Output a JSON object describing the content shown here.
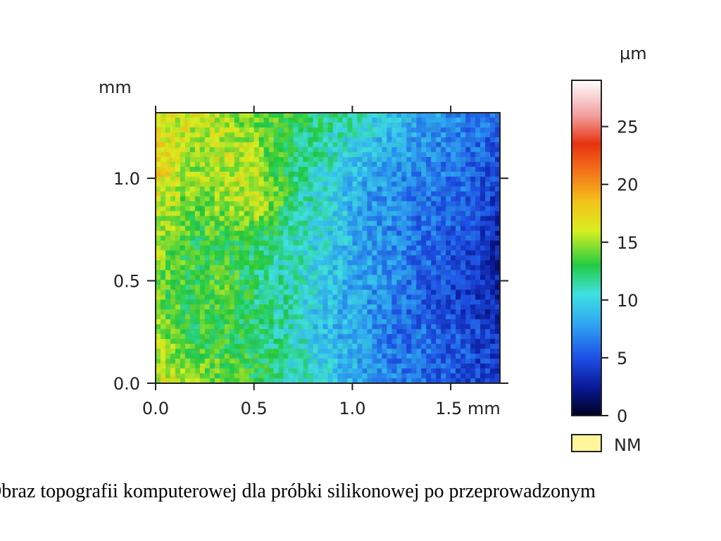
{
  "chart_data": {
    "type": "heatmap",
    "title": "",
    "x_axis": {
      "unit": "mm",
      "range": [
        0.0,
        1.75
      ],
      "ticks": [
        0.0,
        0.5,
        1.0,
        1.5
      ],
      "tick_labels": [
        "0.0",
        "0.5",
        "1.0",
        "1.5 mm"
      ]
    },
    "y_axis": {
      "unit": "mm",
      "range": [
        0.0,
        1.32
      ],
      "ticks": [
        0.0,
        0.5,
        1.0
      ],
      "tick_labels": [
        "0.0",
        "0.5",
        "1.0"
      ],
      "unit_label": "mm"
    },
    "colorbar": {
      "unit_label": "µm",
      "range": [
        0,
        29
      ],
      "ticks": [
        0,
        5,
        10,
        15,
        20,
        25
      ],
      "tick_labels": [
        "0",
        "5",
        "10",
        "15",
        "20",
        "25"
      ],
      "stops": [
        {
          "value": 0,
          "color": "#000022"
        },
        {
          "value": 2.5,
          "color": "#0a1a9a"
        },
        {
          "value": 5,
          "color": "#1e4fe6"
        },
        {
          "value": 8,
          "color": "#2fa8f2"
        },
        {
          "value": 10.5,
          "color": "#3fe0e0"
        },
        {
          "value": 13,
          "color": "#22cc44"
        },
        {
          "value": 16,
          "color": "#d8ee20"
        },
        {
          "value": 18.5,
          "color": "#f4c21a"
        },
        {
          "value": 21,
          "color": "#f4761a"
        },
        {
          "value": 23.5,
          "color": "#e83210"
        },
        {
          "value": 26,
          "color": "#f0a0a0"
        },
        {
          "value": 29,
          "color": "#ffffff"
        }
      ],
      "nm_label": "NM",
      "nm_color": "#fff59a"
    },
    "height_field_um": {
      "description_rows": "rows from y=1.32 mm (top) to y=0.0 mm (bottom), columns from x=0.0 to x=1.75 mm",
      "grid": [
        [
          16,
          16,
          15,
          14,
          13,
          12,
          11,
          9,
          8,
          7,
          6
        ],
        [
          18,
          15,
          16,
          15,
          12,
          11,
          9,
          8,
          7,
          6,
          5
        ],
        [
          16,
          14,
          15,
          16,
          12,
          10,
          8,
          7,
          6,
          6,
          4
        ],
        [
          15,
          13,
          13,
          12,
          11,
          10,
          8,
          7,
          6,
          5,
          3
        ],
        [
          14,
          13,
          14,
          12,
          11,
          9,
          8,
          7,
          5,
          4,
          3
        ],
        [
          15,
          13,
          13,
          12,
          11,
          9,
          8,
          6,
          6,
          5,
          4
        ],
        [
          16,
          15,
          14,
          13,
          11,
          10,
          8,
          7,
          6,
          5,
          4
        ]
      ]
    }
  },
  "caption": {
    "text": "Obraz topografii komputerowej dla próbki silikonowej po przeprowadzonym"
  }
}
